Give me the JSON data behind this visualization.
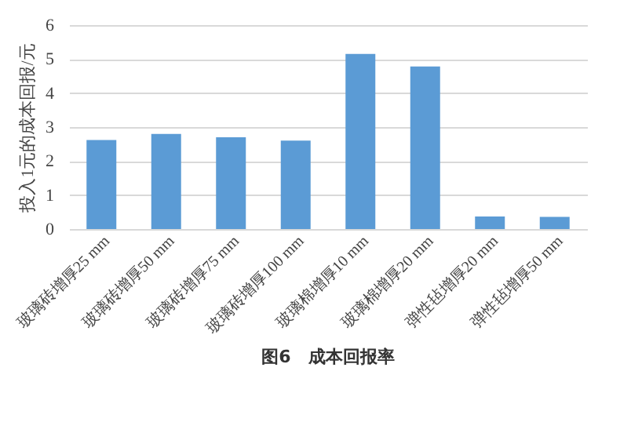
{
  "chart_data": {
    "type": "bar",
    "title": "图6　成本回报率",
    "ylabel": "投入1元的成本回报/元",
    "categories": [
      "玻璃砖增厚25 mm",
      "玻璃砖增厚50 mm",
      "玻璃砖增厚75 mm",
      "玻璃砖增厚100 mm",
      "玻璃棉增厚10 mm",
      "玻璃棉增厚20 mm",
      "弹性毡增厚20 mm",
      "弹性毡增厚50 mm"
    ],
    "values": [
      2.62,
      2.8,
      2.7,
      2.6,
      5.15,
      4.78,
      0.37,
      0.36
    ],
    "color": "#5b9bd5",
    "ylim": [
      0,
      6
    ],
    "yticks": [
      0,
      1,
      2,
      3,
      4,
      5,
      6
    ],
    "grid": "y"
  }
}
